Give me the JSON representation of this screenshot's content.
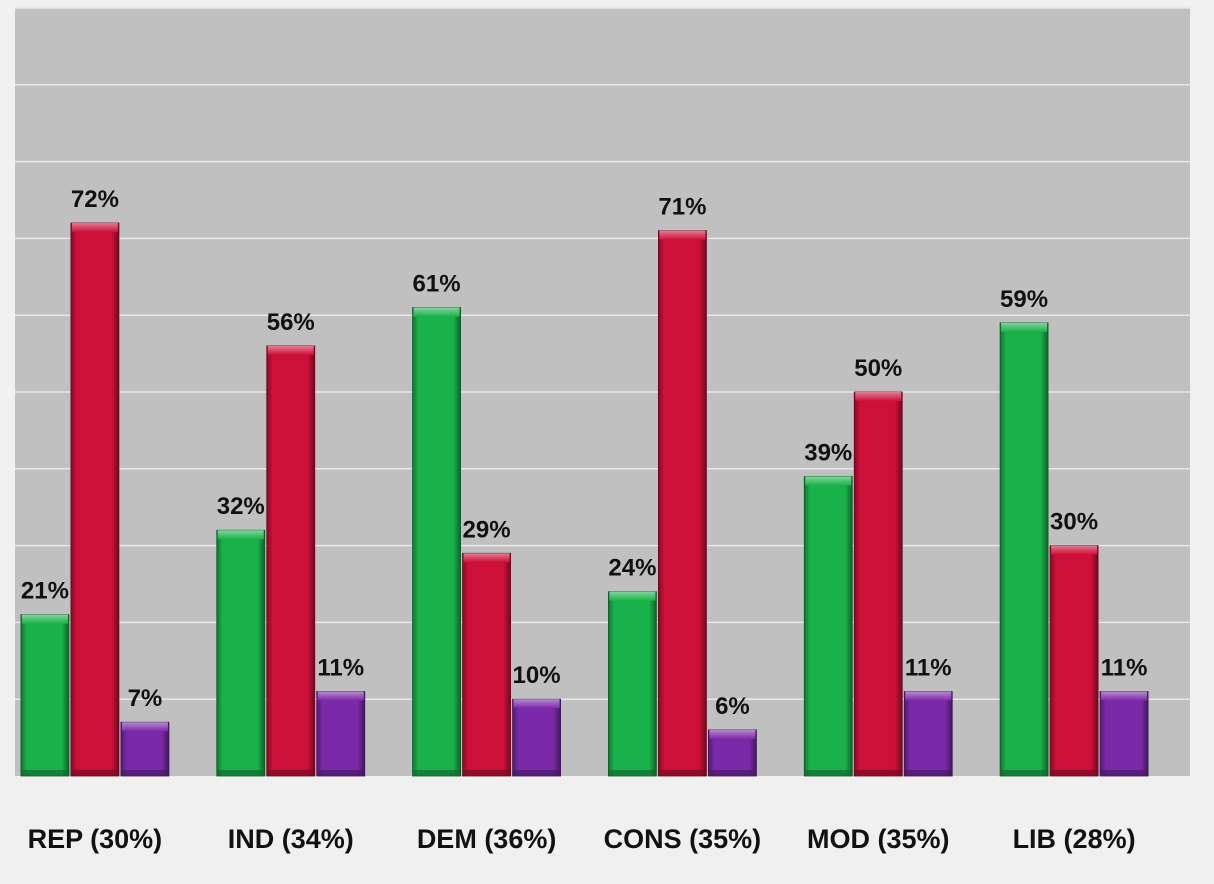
{
  "chart_data": {
    "type": "bar",
    "title": "",
    "xlabel": "",
    "ylabel": "",
    "ylim": [
      0,
      100
    ],
    "grid": true,
    "legend": "none",
    "value_suffix": "%",
    "categories": [
      "REP (30%)",
      "IND (34%)",
      "DEM (36%)",
      "CONS (35%)",
      "MOD (35%)",
      "LIB (28%)"
    ],
    "series": [
      {
        "color": "#19b24a",
        "values": [
          21,
          32,
          61,
          24,
          39,
          59
        ]
      },
      {
        "color": "#cc1038",
        "values": [
          72,
          56,
          29,
          71,
          50,
          30
        ]
      },
      {
        "color": "#7a2aa8",
        "values": [
          7,
          11,
          10,
          6,
          11,
          11
        ]
      }
    ],
    "colors": {
      "plot_background": "#c0c0c0",
      "page_background": "#f0f0f0",
      "gridline": "#e8e8e8"
    }
  }
}
